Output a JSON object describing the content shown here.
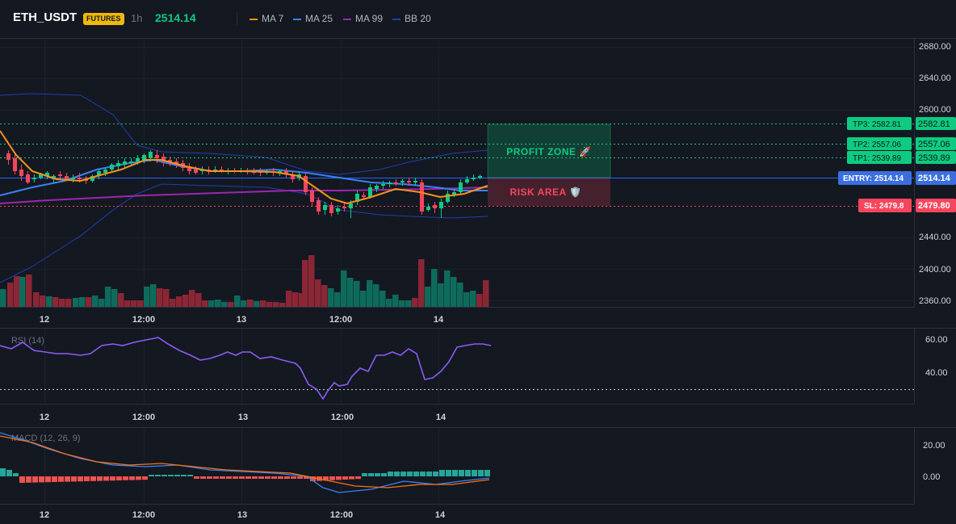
{
  "header": {
    "symbol": "ETH_USDT",
    "badge": "FUTURES",
    "timeframe": "1h",
    "price": "2514.14",
    "indicators": [
      {
        "label": "MA 7",
        "color": "#f7931a"
      },
      {
        "label": "MA 25",
        "color": "#2962ff"
      },
      {
        "label": "MA 99",
        "color": "#9c27b0"
      },
      {
        "label": "BB 20",
        "color": "#1e3a8a"
      }
    ]
  },
  "colors": {
    "up": "#0ecb81",
    "down": "#f6465d",
    "vol_up": "#0e6b5c",
    "vol_down": "#8b2635",
    "ma7": "#f7931a",
    "ma25": "#3b82f6",
    "ma99": "#9c27b0",
    "bb": "#1e40af",
    "rsi": "#8b5cf6",
    "macd": "#3b82f6",
    "signal": "#f97316",
    "hist_pos": "#26a69a",
    "hist_neg": "#ef5350",
    "tp": "#0ecb81",
    "entry": "#2962ff",
    "sl": "#f6465d"
  },
  "main_chart": {
    "y_ticks": [
      "2680.00",
      "2640.00",
      "2600.00",
      "2440.00",
      "2400.00",
      "2360.00"
    ],
    "time_labels": [
      "12",
      "12:00",
      "13",
      "12:00",
      "14"
    ],
    "zones": {
      "profit": "PROFIT ZONE 🚀",
      "risk": "RISK AREA 🛡️"
    },
    "levels": [
      {
        "name": "tp3",
        "label": "TP3: 2582.81",
        "value": "2582.81",
        "color": "#0ecb81"
      },
      {
        "name": "tp2",
        "label": "TP2: 2557.06",
        "value": "2557.06",
        "color": "#0ecb81"
      },
      {
        "name": "tp1",
        "label": "TP1: 2539.89",
        "value": "2539.89",
        "color": "#0ecb81"
      },
      {
        "name": "entry",
        "label": "ENTRY: 2514.14",
        "value": "2514.14",
        "color": "#2962ff"
      },
      {
        "name": "sl",
        "label": "SL: 2479.8",
        "value": "2479.80",
        "color": "#f6465d"
      }
    ]
  },
  "rsi_panel": {
    "title": "RSI (14)",
    "y_ticks": [
      "60.00",
      "40.00"
    ],
    "time_labels": [
      "12",
      "12:00",
      "13",
      "12:00",
      "14"
    ]
  },
  "macd_panel": {
    "title": "MACD (12, 26, 9)",
    "y_ticks": [
      "20.00",
      "0.00"
    ],
    "time_labels": [
      "12",
      "12:00",
      "13",
      "12:00",
      "14"
    ]
  }
}
